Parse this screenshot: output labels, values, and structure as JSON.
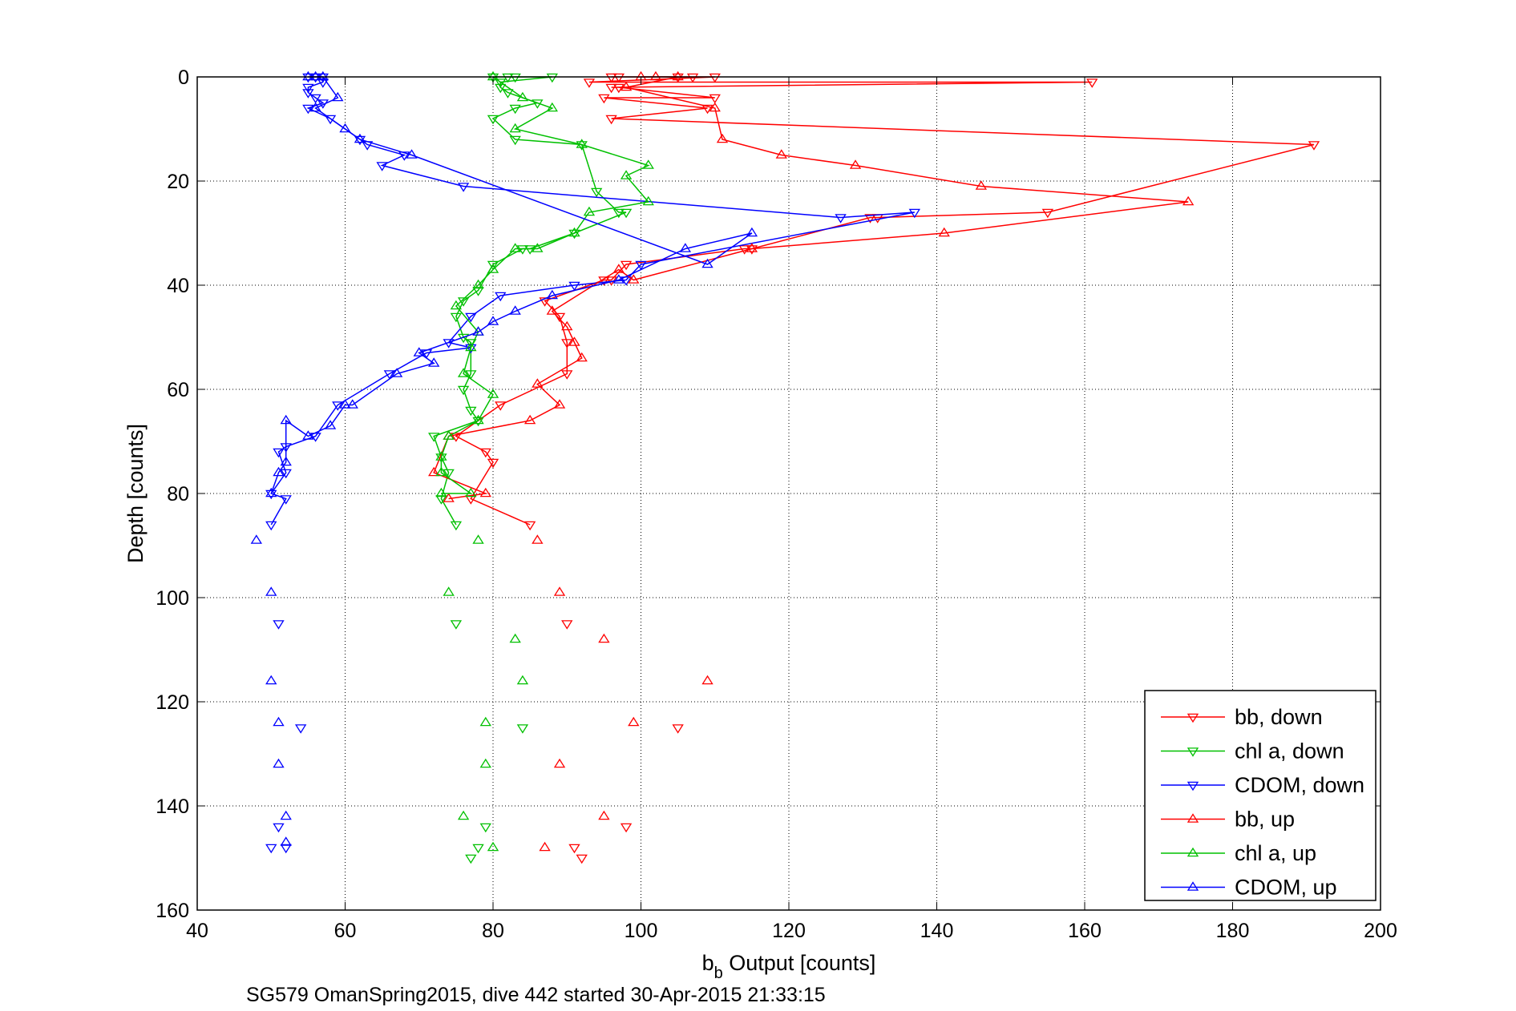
{
  "chart_data": {
    "type": "scatter",
    "xlabel_main": "b",
    "xlabel_sub": "b",
    "xlabel_rest": " Output [counts]",
    "ylabel": "Depth [counts]",
    "caption": "SG579 OmanSpring2015, dive 442 started 30-Apr-2015 21:33:15",
    "xlim": [
      40,
      200
    ],
    "ylim": [
      0,
      160
    ],
    "y_reversed": true,
    "xticks": [
      "40",
      "60",
      "80",
      "100",
      "120",
      "140",
      "160",
      "180",
      "200"
    ],
    "yticks": [
      "0",
      "20",
      "40",
      "60",
      "80",
      "100",
      "120",
      "140",
      "160"
    ],
    "grid": true,
    "legend_position": "bottom-right",
    "series": [
      {
        "name": "bb, down",
        "color": "#ff0000",
        "marker": "triangle-down",
        "points": [
          [
            96,
            0
          ],
          [
            97,
            0
          ],
          [
            105,
            0
          ],
          [
            107,
            0
          ],
          [
            110,
            0
          ],
          [
            93,
            1
          ],
          [
            161,
            1
          ],
          [
            96,
            2
          ],
          [
            97,
            2
          ],
          [
            110,
            4
          ],
          [
            95,
            4
          ],
          [
            109,
            6
          ],
          [
            96,
            8
          ],
          [
            191,
            13
          ],
          [
            155,
            26
          ],
          [
            132,
            27
          ],
          [
            131,
            27
          ],
          [
            115,
            33
          ],
          [
            114,
            33
          ],
          [
            98,
            36
          ],
          [
            96,
            39
          ],
          [
            95,
            39
          ],
          [
            87,
            43
          ],
          [
            89,
            46
          ],
          [
            90,
            51
          ],
          [
            90,
            57
          ],
          [
            81,
            63
          ],
          [
            75,
            69
          ],
          [
            79,
            72
          ],
          [
            80,
            74
          ],
          [
            77,
            81
          ],
          [
            85,
            86
          ]
        ],
        "scatter": [
          [
            90,
            105
          ],
          [
            105,
            125
          ],
          [
            98,
            144
          ],
          [
            91,
            148
          ],
          [
            92,
            150
          ]
        ]
      },
      {
        "name": "chl a, down",
        "color": "#00c000",
        "marker": "triangle-down",
        "points": [
          [
            80,
            0
          ],
          [
            82,
            0
          ],
          [
            83,
            0
          ],
          [
            88,
            0
          ],
          [
            81,
            1
          ],
          [
            81,
            2
          ],
          [
            82,
            3
          ],
          [
            86,
            5
          ],
          [
            83,
            6
          ],
          [
            80,
            8
          ],
          [
            83,
            12
          ],
          [
            92,
            13
          ],
          [
            94,
            22
          ],
          [
            97,
            26
          ],
          [
            98,
            26
          ],
          [
            91,
            30
          ],
          [
            85,
            33
          ],
          [
            84,
            33
          ],
          [
            80,
            36
          ],
          [
            78,
            41
          ],
          [
            76,
            43
          ],
          [
            75,
            46
          ],
          [
            76,
            50
          ],
          [
            77,
            51
          ],
          [
            77,
            57
          ],
          [
            76,
            60
          ],
          [
            77,
            64
          ],
          [
            78,
            66
          ],
          [
            72,
            69
          ],
          [
            73,
            73
          ],
          [
            74,
            76
          ],
          [
            73,
            81
          ],
          [
            75,
            86
          ]
        ],
        "scatter": [
          [
            75,
            105
          ],
          [
            84,
            125
          ],
          [
            79,
            144
          ],
          [
            78,
            148
          ],
          [
            77,
            150
          ]
        ]
      },
      {
        "name": "CDOM, down",
        "color": "#0000ff",
        "marker": "triangle-down",
        "points": [
          [
            55,
            0
          ],
          [
            56,
            0
          ],
          [
            57,
            0
          ],
          [
            57,
            1
          ],
          [
            55,
            2
          ],
          [
            55,
            3
          ],
          [
            56,
            4
          ],
          [
            57,
            5
          ],
          [
            55,
            6
          ],
          [
            58,
            8
          ],
          [
            62,
            12
          ],
          [
            63,
            13
          ],
          [
            68,
            15
          ],
          [
            65,
            17
          ],
          [
            76,
            21
          ],
          [
            127,
            27
          ],
          [
            137,
            26
          ],
          [
            100,
            36
          ],
          [
            98,
            39
          ],
          [
            91,
            40
          ],
          [
            81,
            42
          ],
          [
            77,
            46
          ],
          [
            74,
            51
          ],
          [
            77,
            52
          ],
          [
            71,
            53
          ],
          [
            66,
            57
          ],
          [
            59,
            63
          ],
          [
            56,
            69
          ],
          [
            52,
            71
          ],
          [
            51,
            72
          ],
          [
            52,
            76
          ],
          [
            50,
            80
          ],
          [
            52,
            81
          ],
          [
            50,
            86
          ]
        ],
        "scatter": [
          [
            51,
            105
          ],
          [
            54,
            125
          ],
          [
            51,
            144
          ],
          [
            52,
            148
          ],
          [
            50,
            148
          ]
        ]
      },
      {
        "name": "bb, up",
        "color": "#ff0000",
        "marker": "triangle-up",
        "points": [
          [
            102,
            0
          ],
          [
            100,
            0
          ],
          [
            105,
            0
          ],
          [
            98,
            2
          ],
          [
            110,
            6
          ],
          [
            111,
            12
          ],
          [
            119,
            15
          ],
          [
            129,
            17
          ],
          [
            146,
            21
          ],
          [
            174,
            24
          ],
          [
            141,
            30
          ],
          [
            115,
            33
          ],
          [
            99,
            39
          ],
          [
            97,
            37
          ],
          [
            88,
            45
          ],
          [
            90,
            48
          ],
          [
            91,
            51
          ],
          [
            92,
            54
          ],
          [
            86,
            59
          ],
          [
            89,
            63
          ],
          [
            85,
            66
          ],
          [
            74,
            69
          ],
          [
            72,
            76
          ],
          [
            79,
            80
          ],
          [
            74,
            81
          ]
        ],
        "scatter": [
          [
            89,
            99
          ],
          [
            95,
            108
          ],
          [
            109,
            116
          ],
          [
            99,
            124
          ],
          [
            89,
            132
          ],
          [
            95,
            142
          ],
          [
            87,
            148
          ],
          [
            86,
            89
          ]
        ]
      },
      {
        "name": "chl a, up",
        "color": "#00c000",
        "marker": "triangle-up",
        "points": [
          [
            80,
            0
          ],
          [
            84,
            4
          ],
          [
            88,
            6
          ],
          [
            83,
            10
          ],
          [
            92,
            13
          ],
          [
            101,
            17
          ],
          [
            98,
            19
          ],
          [
            101,
            24
          ],
          [
            93,
            26
          ],
          [
            91,
            30
          ],
          [
            86,
            33
          ],
          [
            83,
            33
          ],
          [
            80,
            37
          ],
          [
            78,
            40
          ],
          [
            75,
            44
          ],
          [
            78,
            49
          ],
          [
            77,
            52
          ],
          [
            76,
            57
          ],
          [
            80,
            61
          ],
          [
            78,
            66
          ],
          [
            74,
            69
          ],
          [
            73,
            73
          ],
          [
            73,
            76
          ],
          [
            77,
            80
          ],
          [
            73,
            80
          ]
        ],
        "scatter": [
          [
            78,
            89
          ],
          [
            74,
            99
          ],
          [
            83,
            108
          ],
          [
            84,
            116
          ],
          [
            79,
            124
          ],
          [
            79,
            132
          ],
          [
            76,
            142
          ],
          [
            80,
            148
          ]
        ]
      },
      {
        "name": "CDOM, up",
        "color": "#0000ff",
        "marker": "triangle-up",
        "points": [
          [
            55,
            0
          ],
          [
            56,
            0
          ],
          [
            57,
            0
          ],
          [
            59,
            4
          ],
          [
            56,
            6
          ],
          [
            60,
            10
          ],
          [
            62,
            12
          ],
          [
            69,
            15
          ],
          [
            109,
            36
          ],
          [
            115,
            30
          ],
          [
            106,
            33
          ],
          [
            97,
            39
          ],
          [
            88,
            42
          ],
          [
            83,
            45
          ],
          [
            80,
            47
          ],
          [
            78,
            49
          ],
          [
            70,
            53
          ],
          [
            72,
            55
          ],
          [
            67,
            57
          ],
          [
            61,
            63
          ],
          [
            60,
            63
          ],
          [
            58,
            67
          ],
          [
            55,
            69
          ],
          [
            52,
            66
          ],
          [
            52,
            74
          ],
          [
            51,
            76
          ],
          [
            50,
            80
          ]
        ],
        "scatter": [
          [
            48,
            89
          ],
          [
            50,
            99
          ],
          [
            50,
            116
          ],
          [
            51,
            124
          ],
          [
            51,
            132
          ],
          [
            52,
            142
          ],
          [
            52,
            147
          ]
        ]
      }
    ]
  }
}
